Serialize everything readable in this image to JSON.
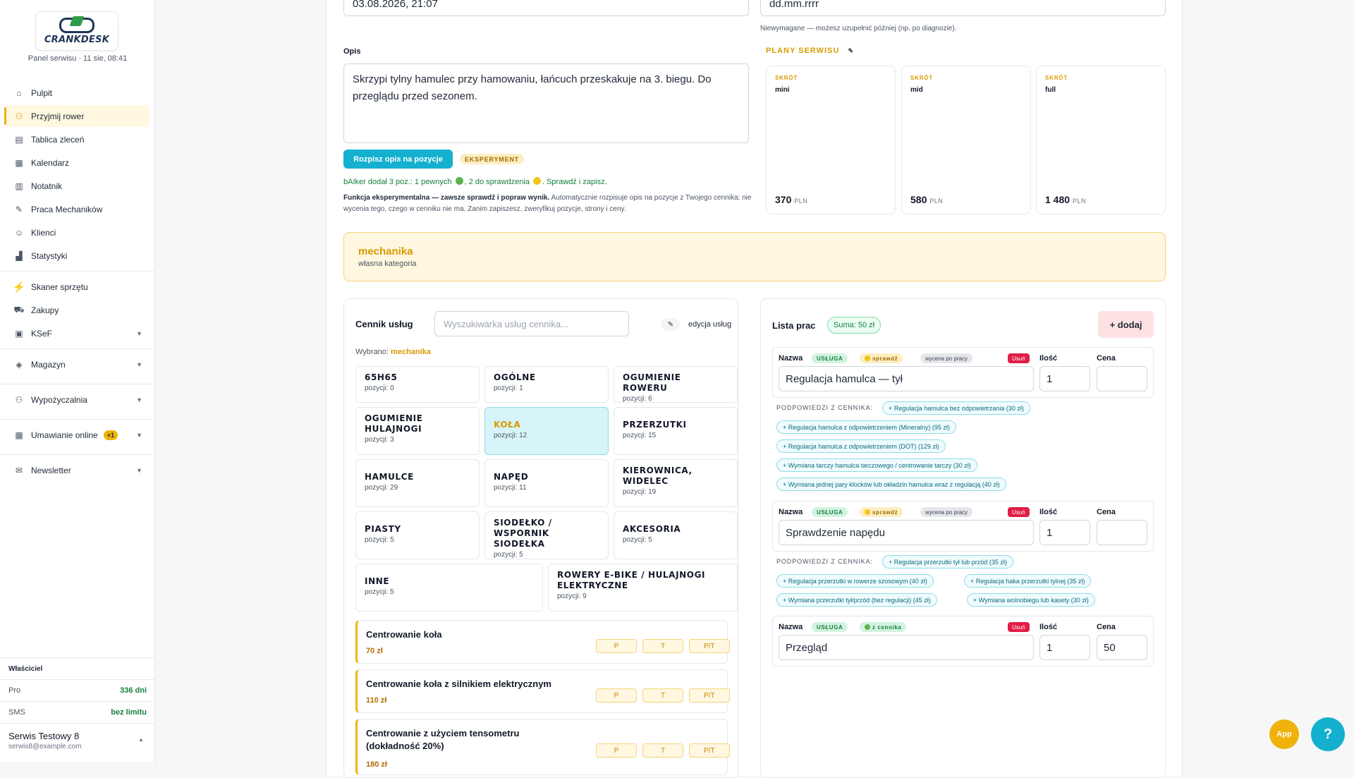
{
  "sidebar": {
    "logo_text": "CRANKDESK",
    "panel_subtitle": "Panel serwisu · 11 sie, 08:41",
    "items": [
      {
        "label": "Pulpit",
        "icon": "home-icon"
      },
      {
        "label": "Przyjmij rower",
        "icon": "bike-icon"
      },
      {
        "label": "Tablica zleceń",
        "icon": "board-icon"
      },
      {
        "label": "Kalendarz",
        "icon": "calendar-icon"
      },
      {
        "label": "Notatnik",
        "icon": "notebook-icon"
      },
      {
        "label": "Praca Mechaników",
        "icon": "wrench-icon"
      },
      {
        "label": "Klienci",
        "icon": "users-icon"
      },
      {
        "label": "Statystyki",
        "icon": "chart-icon"
      },
      {
        "label": "Skaner sprzętu",
        "icon": "bolt-icon"
      },
      {
        "label": "Zakupy",
        "icon": "cart-icon"
      },
      {
        "label": "KSeF",
        "icon": "invoice-icon"
      },
      {
        "label": "Magazyn",
        "icon": "box-icon"
      },
      {
        "label": "Wypożyczalnia",
        "icon": "bike-icon"
      },
      {
        "label": "Umawianie online",
        "icon": "calendar-icon",
        "badge": "+1"
      },
      {
        "label": "Newsletter",
        "icon": "mail-icon"
      }
    ],
    "owner_label": "Właściciel",
    "plan_label": "Pro",
    "plan_value": "336 dni",
    "sms_label": "SMS",
    "sms_value": "bez limitu",
    "user_name": "Serwis Testowy 8",
    "user_email": "serwis8@example.com"
  },
  "form": {
    "date_value": "03.08.2026, 21:07",
    "date2_placeholder": "dd.mm.rrrr",
    "date2_hint": "Niewymagane — możesz uzupełnić później (np. po diagnozie).",
    "desc_label": "Opis",
    "desc_value": "Skrzypi tylny hamulec przy hamowaniu, łańcuch przeskakuje na 3. biegu. Do przeglądu przed sezonem.",
    "ai_button": "Rozpisz opis na pozycje",
    "ai_tag": "EKSPERYMENT",
    "ai_result_a": "bAIker dodał 3 poz.: 1 pewnych",
    "ai_result_b": ", 2 do sprawdzenia",
    "ai_result_c": ". Sprawdź i zapisz.",
    "ai_note_bold": "Funkcja eksperymentalna — zawsze sprawdź i popraw wynik.",
    "ai_note_rest": " Automatycznie rozpisuje opis na pozycje z Twojego cennika; nie wycenia tego, czego w cenniku nie ma. Zanim zapiszesz, zweryfikuj pozycje, strony i ceny."
  },
  "plans": {
    "heading": "PLANY SERWISU",
    "edit_icon": "✎",
    "items": [
      {
        "key": "SKRÓT",
        "name": "mini",
        "price": "370",
        "currency": "PLN"
      },
      {
        "key": "SKRÓT",
        "name": "mid",
        "price": "580",
        "currency": "PLN"
      },
      {
        "key": "SKRÓT",
        "name": "full",
        "price": "1 480",
        "currency": "PLN"
      }
    ]
  },
  "category_banner": {
    "title": "mechanika",
    "subtitle": "własna kategoria"
  },
  "pricelist": {
    "title": "Cennik usług",
    "search_placeholder": "Wyszukiwarka usług cennika...",
    "edit_label": "edycja usług",
    "selected_prefix": "Wybrano: ",
    "selected_value": "mechanika",
    "categories": [
      {
        "name": "65H65",
        "count": "pozycji: 0"
      },
      {
        "name": "OGÓLNE",
        "count": "pozycji: 1"
      },
      {
        "name": "OGUMIENIE ROWERU",
        "count": "pozycji: 6"
      },
      {
        "name": "OGUMIENIE HULAJNOGI",
        "count": "pozycji: 3"
      },
      {
        "name": "KOŁA",
        "count": "pozycji: 12"
      },
      {
        "name": "PRZERZUTKI",
        "count": "pozycji: 15"
      },
      {
        "name": "HAMULCE",
        "count": "pozycji: 29"
      },
      {
        "name": "NAPĘD",
        "count": "pozycji: 11"
      },
      {
        "name": "KIEROWNICA, WIDELEC",
        "count": "pozycji: 19"
      },
      {
        "name": "PIASTY",
        "count": "pozycji: 5"
      },
      {
        "name": "SIODEŁKO / WSPORNIK SIODEŁKA",
        "count": "pozycji: 5"
      },
      {
        "name": "AKCESORIA",
        "count": "pozycji: 5"
      },
      {
        "name": "INNE",
        "count": "pozycji: 5"
      },
      {
        "name": "ROWERY E-BIKE / HULAJNOGI ELEKTRYCZNE",
        "count": "pozycji: 9"
      }
    ],
    "sides": [
      "P",
      "T",
      "P/T"
    ],
    "services": [
      {
        "name": "Centrowanie koła",
        "price": "70 zł"
      },
      {
        "name": "Centrowanie koła z silnikiem elektrycznym",
        "price": "110 zł"
      },
      {
        "name": "Centrowanie z użyciem tensometru (dokładność 20%)",
        "price": "180 zł"
      }
    ]
  },
  "worklist": {
    "title": "Lista prac",
    "sum": "Suma: 50 zł",
    "add_button": "+ dodaj",
    "col_name": "Nazwa",
    "col_qty": "Ilość",
    "col_price": "Cena",
    "chip_service": "USŁUGA",
    "chip_check": "sprawdź",
    "chip_quote": "wycena po pracy",
    "chip_catalog": "z cennika",
    "remove": "Usuń",
    "hints_label": "PODPOWIEDZI Z CENNIKA:",
    "items": [
      {
        "name": "Regulacja hamulca — tył",
        "qty": "1",
        "price": ""
      },
      {
        "name": "Sprawdzenie napędu",
        "qty": "1",
        "price": ""
      },
      {
        "name": "Przegląd",
        "qty": "1",
        "price": "50"
      }
    ],
    "hints1": [
      "+ Regulacja hamulca bez odpowietrzania (30 zł)",
      "+ Regulacja hamulca z odpowietrzeniem (Mineralny) (95 zł)",
      "+ Regulacja hamulca z odpowietrzeniem (DOT) (129 zł)",
      "+ Wymiana tarczy hamulca tarczowego / centrowanie tarczy (30 zł)",
      "+ Wymiana jednej pary klocków lub okładzin hamulca wraz z regulacją (40 zł)"
    ],
    "hints2": [
      "+ Regulacja przerzutki tył lub przód (35 zł)",
      "+ Regulacja przerzutki w rowerze szosowym (40 zł)",
      "+ Regulacja haka przerzutki tylnej (35 zł)",
      "+ Wymiana przerzutki tył/przód (bez regulacji) (45 zł)",
      "+ Wymiana wolnobiegu lub kasety (30 zł)"
    ]
  },
  "fab": {
    "app": "App",
    "help": "?"
  },
  "colors": {
    "accent": "#f0b20a",
    "primary": "#14b0cf",
    "success": "#16803c",
    "danger": "#e11d48"
  }
}
